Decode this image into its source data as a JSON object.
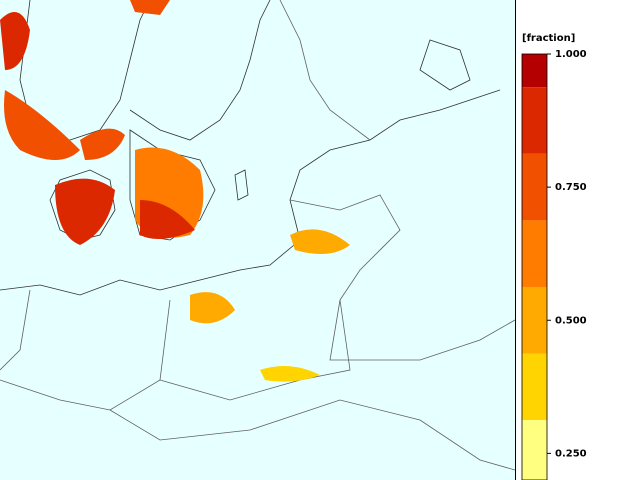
{
  "colorbar": {
    "unit": "[fraction]",
    "lim": [
      0.2,
      1.0
    ],
    "ticks": [
      {
        "value": 1.0,
        "label": "1.000"
      },
      {
        "value": 0.75,
        "label": "0.750"
      },
      {
        "value": 0.5,
        "label": "0.500"
      },
      {
        "value": 0.25,
        "label": "0.250"
      }
    ],
    "bands": [
      {
        "from": 0.9375,
        "to": 1.0,
        "color": "#b40000"
      },
      {
        "from": 0.8125,
        "to": 0.9375,
        "color": "#dc2800"
      },
      {
        "from": 0.6875,
        "to": 0.8125,
        "color": "#f05000"
      },
      {
        "from": 0.5625,
        "to": 0.6875,
        "color": "#ff7c00"
      },
      {
        "from": 0.4375,
        "to": 0.5625,
        "color": "#ffaa00"
      },
      {
        "from": 0.3125,
        "to": 0.4375,
        "color": "#ffd400"
      },
      {
        "from": 0.1875,
        "to": 0.3125,
        "color": "#ffff80"
      }
    ]
  }
}
